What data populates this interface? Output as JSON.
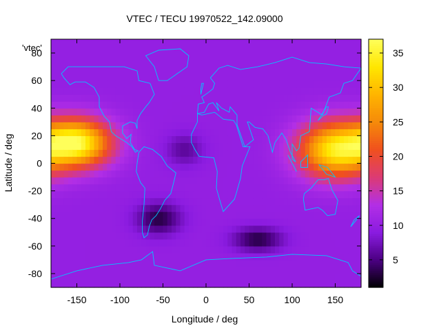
{
  "chart_data": {
    "type": "heatmap",
    "title": "VTEC / TECU 19970522_142.09000",
    "xlabel": "Longitude / deg",
    "ylabel": "Latitude / deg",
    "key_label": "'vtec'",
    "xlim": [
      -180,
      180
    ],
    "ylim": [
      -90,
      90
    ],
    "x_ticks": [
      "-150",
      "-100",
      "-50",
      "0",
      "50",
      "100",
      "150"
    ],
    "x_tick_values": [
      -150,
      -100,
      -50,
      0,
      50,
      100,
      150
    ],
    "y_ticks": [
      "-80",
      "-60",
      "-40",
      "-20",
      "0",
      "20",
      "40",
      "60",
      "80"
    ],
    "y_tick_values": [
      -80,
      -60,
      -40,
      -20,
      0,
      20,
      40,
      60,
      80
    ],
    "colorbar": {
      "range": [
        1,
        37
      ],
      "ticks": [
        "5",
        "10",
        "15",
        "20",
        "25",
        "30",
        "35"
      ],
      "tick_values": [
        5,
        10,
        15,
        20,
        25,
        30,
        35
      ],
      "palette": [
        "#000000",
        "#4b0082",
        "#8a1be0",
        "#b22fe6",
        "#dc3b74",
        "#f0501e",
        "#f58a0a",
        "#ffb400",
        "#ffe600",
        "#ffff5a"
      ]
    },
    "field_features": [
      {
        "type": "background",
        "value": 10
      },
      {
        "lon": -150,
        "lat": 15,
        "sigma_lon": 28,
        "sigma_lat": 12,
        "value": 25
      },
      {
        "lon": 150,
        "lat": 10,
        "sigma_lon": 30,
        "sigma_lat": 14,
        "value": 23
      },
      {
        "lon": -55,
        "lat": -40,
        "sigma_lon": 18,
        "sigma_lat": 8,
        "value": -7
      },
      {
        "lon": 60,
        "lat": -55,
        "sigma_lon": 20,
        "sigma_lat": 6,
        "value": -7
      },
      {
        "lon": -25,
        "lat": 10,
        "sigma_lon": 15,
        "sigma_lat": 8,
        "value": -4
      }
    ],
    "grid": false,
    "legend_position": "top-left"
  },
  "colors": {
    "coastline": "#00c8ff",
    "frame": "#000000",
    "background": "#ffffff"
  }
}
